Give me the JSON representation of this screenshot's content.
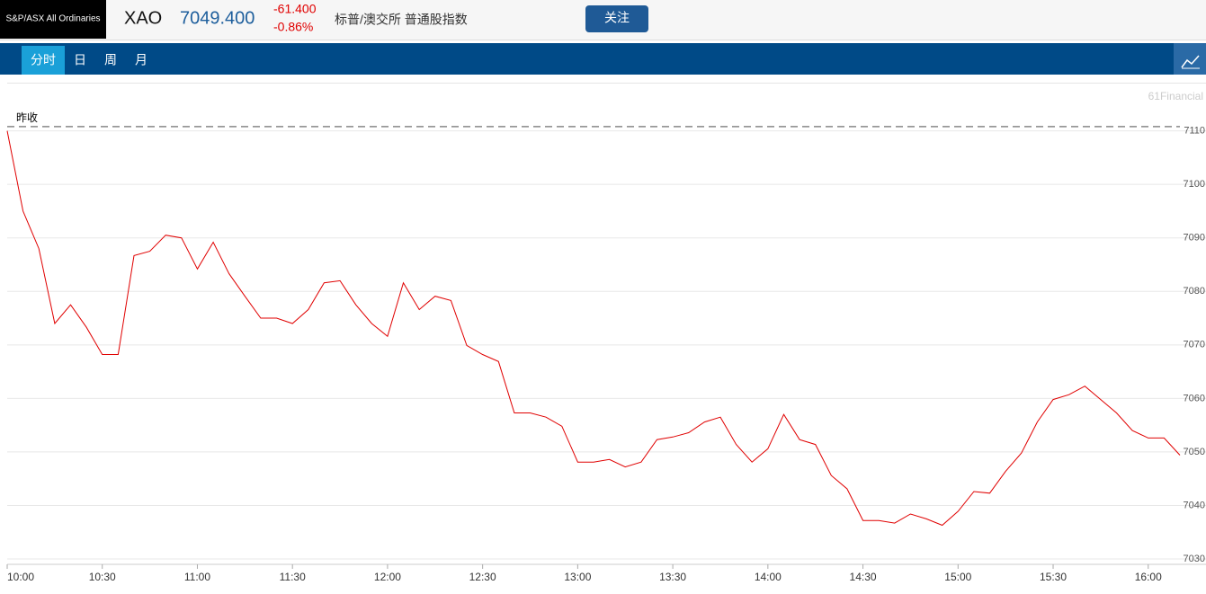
{
  "header": {
    "logo": "S&P/ASX All Ordinaries",
    "symbol": "XAO",
    "price": "7049.400",
    "change": "-61.400",
    "change_pct": "-0.86%",
    "name": "标普/澳交所 普通股指数",
    "follow_button": "关注"
  },
  "tabs": [
    "分时",
    "日",
    "周",
    "月"
  ],
  "active_tab": 0,
  "chart_data": {
    "type": "line",
    "watermark": "61Financial",
    "prev_close_label": "昨收",
    "prev_close": 7110.8,
    "x": [
      "10:00",
      "10:05",
      "10:10",
      "10:15",
      "10:20",
      "10:25",
      "10:30",
      "10:35",
      "10:40",
      "10:45",
      "10:50",
      "10:55",
      "11:00",
      "11:05",
      "11:10",
      "11:15",
      "11:20",
      "11:25",
      "11:30",
      "11:35",
      "11:40",
      "11:45",
      "11:50",
      "11:55",
      "12:00",
      "12:05",
      "12:10",
      "12:15",
      "12:20",
      "12:25",
      "12:30",
      "12:35",
      "12:40",
      "12:45",
      "12:50",
      "12:55",
      "13:00",
      "13:05",
      "13:10",
      "13:15",
      "13:20",
      "13:25",
      "13:30",
      "13:35",
      "13:40",
      "13:45",
      "13:50",
      "13:55",
      "14:00",
      "14:05",
      "14:10",
      "14:15",
      "14:20",
      "14:25",
      "14:30",
      "14:35",
      "14:40",
      "14:45",
      "14:50",
      "14:55",
      "15:00",
      "15:05",
      "15:10",
      "15:15",
      "15:20",
      "15:25",
      "15:30",
      "15:35",
      "15:40",
      "15:45",
      "15:50",
      "15:55",
      "16:00",
      "16:05",
      "16:10"
    ],
    "series": [
      {
        "color": "#e00000",
        "values": [
          7110,
          7095,
          7088,
          7074,
          7077.5,
          7073.3,
          7068.2,
          7068.2,
          7086.7,
          7087.5,
          7090.5,
          7090,
          7084.2,
          7089.2,
          7083.3,
          7079.1,
          7075,
          7075,
          7074,
          7076.6,
          7081.6,
          7082,
          7077.5,
          7074,
          7071.6,
          7081.6,
          7076.6,
          7079.1,
          7078.3,
          7069.9,
          7068.2,
          7066.9,
          7057.3,
          7057.3,
          7056.5,
          7054.8,
          7048.1,
          7048.1,
          7048.6,
          7047.2,
          7048.1,
          7052.3,
          7052.8,
          7053.6,
          7055.6,
          7056.5,
          7051.4,
          7048.1,
          7050.6,
          7057,
          7052.3,
          7051.4,
          7045.6,
          7043.1,
          7037.2,
          7037.2,
          7036.7,
          7038.4,
          7037.5,
          7036.3,
          7038.9,
          7042.6,
          7042.3,
          7046.4,
          7049.8,
          7055.6,
          7059.8,
          7060.7,
          7062.3,
          7059.8,
          7057.3,
          7054,
          7052.6,
          7052.6,
          7049.4
        ]
      }
    ],
    "xlim": [
      "10:00",
      "16:10"
    ],
    "xticks": [
      "10:00",
      "10:30",
      "11:00",
      "11:30",
      "12:00",
      "12:30",
      "13:00",
      "13:30",
      "14:00",
      "14:30",
      "15:00",
      "15:30",
      "16:00"
    ],
    "ylim": [
      7029,
      7119
    ],
    "yticks": [
      7030,
      7040,
      7050,
      7060,
      7070,
      7080,
      7090,
      7100,
      7110
    ],
    "grid": true
  }
}
